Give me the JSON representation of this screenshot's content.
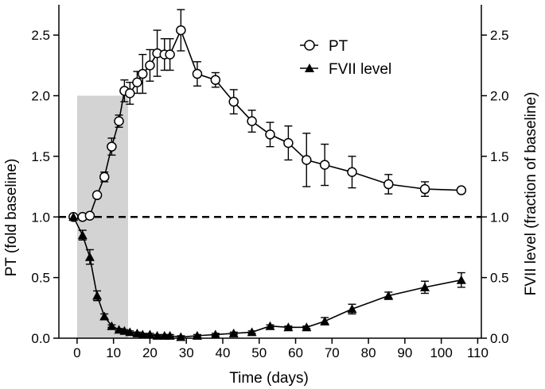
{
  "chart_data": {
    "type": "line",
    "title": "",
    "xlabel": "Time (days)",
    "ylabel_left": "PT (fold baseline)",
    "ylabel_right": "FVII level (fraction of baseline)",
    "xlim": [
      -5,
      111
    ],
    "ylim_left": [
      0,
      2.75
    ],
    "ylim_right": [
      0,
      2.75
    ],
    "x_ticks": [
      0,
      10,
      20,
      30,
      40,
      50,
      60,
      70,
      80,
      90,
      100,
      110
    ],
    "x_tick_labels": [
      "0",
      "10",
      "20",
      "30",
      "40",
      "50",
      "60",
      "70",
      "80",
      "90",
      "100",
      "110"
    ],
    "y_ticks": [
      0,
      0.5,
      1.0,
      1.5,
      2.0,
      2.5
    ],
    "y_tick_labels": [
      "0.0",
      "0.5",
      "1.0",
      "1.5",
      "2.0",
      "2.5"
    ],
    "reference_line": {
      "y": 1.0,
      "style": "dashed"
    },
    "shaded_region": {
      "x": [
        0,
        14
      ],
      "y": [
        0,
        2.0
      ],
      "color": "#d3d3d3"
    },
    "legend": {
      "position": "top-right",
      "entries": [
        "PT",
        "FVII level"
      ]
    },
    "series": [
      {
        "name": "PT",
        "marker": "open-circle",
        "color": "#000000",
        "x": [
          -1,
          1.5,
          3.5,
          5.5,
          7.5,
          9.5,
          11.5,
          13,
          14.5,
          16.5,
          18,
          20,
          22,
          24,
          25.5,
          28.5,
          33,
          38,
          43,
          48,
          53,
          58,
          63,
          68,
          75.5,
          85.5,
          95.5,
          105.5
        ],
        "y": [
          1.0,
          1.0,
          1.01,
          1.18,
          1.33,
          1.58,
          1.79,
          2.04,
          2.02,
          2.11,
          2.18,
          2.25,
          2.35,
          2.34,
          2.34,
          2.54,
          2.18,
          2.13,
          1.95,
          1.79,
          1.68,
          1.61,
          1.47,
          1.43,
          1.37,
          1.27,
          1.23,
          1.22
        ],
        "err": [
          0,
          0,
          0.02,
          0.02,
          0.04,
          0.07,
          0.05,
          0.09,
          0.09,
          0.09,
          0.16,
          0.13,
          0.19,
          0.13,
          0.13,
          0.17,
          0.1,
          0.06,
          0.1,
          0.09,
          0.1,
          0.14,
          0.22,
          0.17,
          0.13,
          0.08,
          0.06,
          0
        ]
      },
      {
        "name": "FVII level",
        "marker": "filled-triangle",
        "color": "#000000",
        "x": [
          -1,
          1.5,
          3.5,
          5.5,
          7.5,
          9.5,
          11.5,
          13,
          14.5,
          16.5,
          18,
          20,
          22,
          24,
          25.5,
          28.5,
          33,
          38,
          43,
          48,
          53,
          58,
          63,
          68,
          75.5,
          85.5,
          95.5,
          105.5
        ],
        "y": [
          1.0,
          0.85,
          0.67,
          0.35,
          0.18,
          0.1,
          0.07,
          0.06,
          0.05,
          0.04,
          0.03,
          0.03,
          0.02,
          0.02,
          0.02,
          0.01,
          0.02,
          0.03,
          0.04,
          0.05,
          0.1,
          0.09,
          0.09,
          0.14,
          0.24,
          0.35,
          0.42,
          0.48
        ],
        "err": [
          0,
          0.04,
          0.06,
          0.04,
          0.02,
          0.01,
          0.01,
          0.01,
          0.01,
          0.01,
          0.01,
          0.01,
          0.01,
          0.01,
          0.01,
          0.01,
          0.01,
          0.01,
          0.01,
          0.01,
          0.01,
          0.01,
          0.01,
          0.03,
          0.04,
          0.03,
          0.05,
          0.06
        ]
      }
    ]
  }
}
